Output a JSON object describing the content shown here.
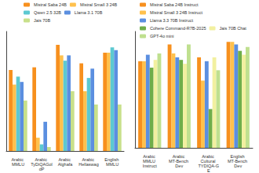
{
  "chart_data": [
    {
      "type": "bar",
      "categories": [
        "Arabic MMLU",
        "Arabic TyDiQAGoldP",
        "Arabic Alghafa",
        "Arabic Hellaswag",
        "English MMLU"
      ],
      "series": [
        {
          "name": "Mistral Saba 24B",
          "color": "#f7901e",
          "values": [
            61,
            63,
            80,
            66,
            74
          ]
        },
        {
          "name": "Mistral Small 3 24B",
          "color": "#ffc14d",
          "values": [
            50,
            10,
            72,
            45,
            74
          ]
        },
        {
          "name": "Qwen 2.5 32B",
          "color": "#5cc9d1",
          "values": [
            56,
            5,
            68,
            55,
            78
          ]
        },
        {
          "name": "Llama 3.1 70B",
          "color": "#5b8fe0",
          "values": [
            52,
            22,
            72,
            62,
            76
          ]
        },
        {
          "name": "Jais 70B",
          "color": "#c8e08a",
          "values": [
            38,
            3,
            45,
            35,
            35
          ]
        }
      ],
      "ylim": [
        0,
        90
      ],
      "tick_labels": "x",
      "grid": false,
      "legend": "top"
    },
    {
      "type": "bar",
      "categories": [
        "Arabic MMLU Instruct",
        "Arabic MT-Bench Dev",
        "Arabic Cultural TYDIQA-GE",
        "English MT-Bench Dev"
      ],
      "series": [
        {
          "name": "Mistral Saba 24B Instruct",
          "color": "#f7901e",
          "values": [
            67,
            80,
            70,
            82
          ]
        },
        {
          "name": "Mistral Small 3 24B Instruct",
          "color": "#ffc14d",
          "values": [
            67,
            73,
            52,
            82
          ]
        },
        {
          "name": "Llama 3.3 70B Instruct",
          "color": "#5b8fe0",
          "values": [
            72,
            70,
            67,
            80
          ]
        },
        {
          "name": "Cohere Command-R7B-2025",
          "color": "#6fae4a",
          "values": [
            62,
            68,
            30,
            75
          ]
        },
        {
          "name": "Jais 70B Chat",
          "color": "#f2f0a0",
          "values": [
            68,
            65,
            70,
            72
          ]
        },
        {
          "name": "GPT-4o mini",
          "color": "#bfe08f",
          "values": [
            73,
            80,
            60,
            78
          ]
        }
      ],
      "ylim": [
        0,
        90
      ],
      "tick_labels": "x",
      "grid": false,
      "legend": "top"
    }
  ]
}
